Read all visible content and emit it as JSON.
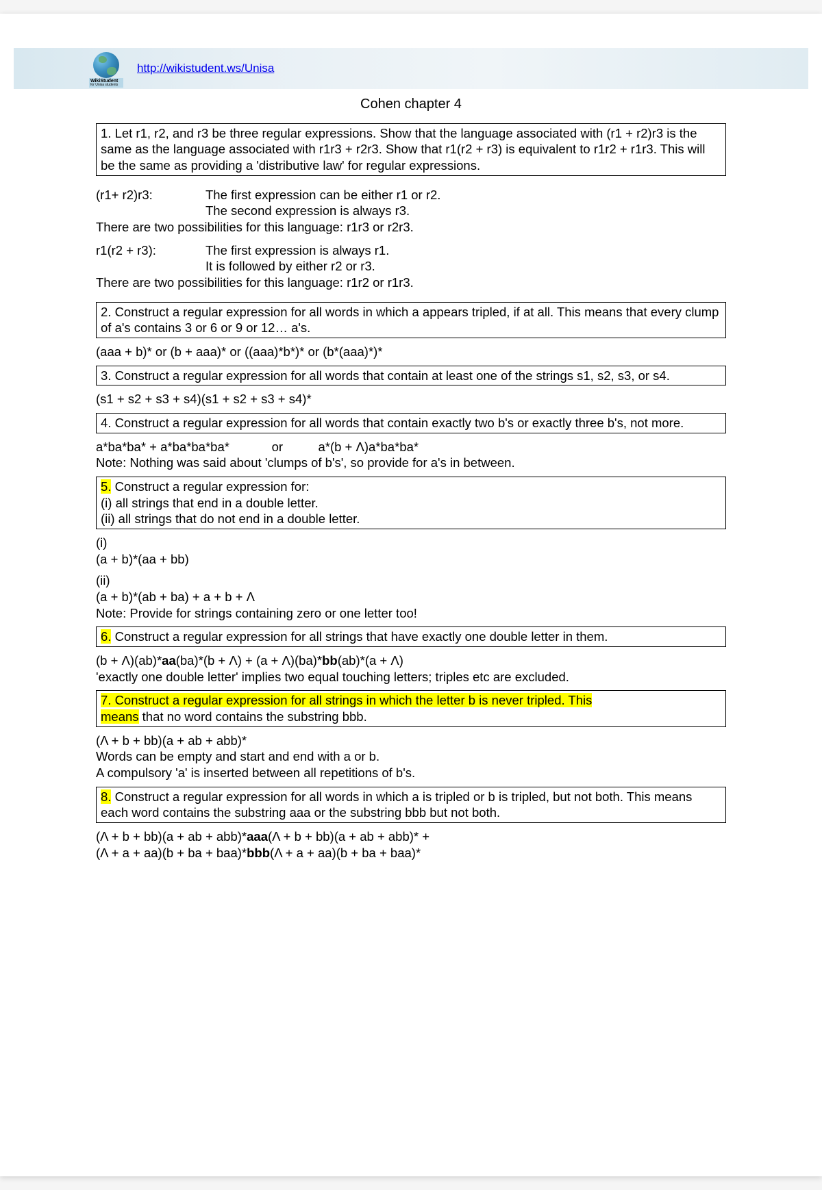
{
  "header": {
    "logo_name": "WikiStudent",
    "logo_sub": "for Unisa students",
    "link_text": "http://wikistudent.ws/Unisa"
  },
  "title": "Cohen chapter 4",
  "q1": {
    "box": "1. Let r1, r2, and r3 be three regular expressions. Show that the language associated with (r1 + r2)r3 is the same as the language associated with r1r3 + r2r3. Show that r1(r2 + r3) is equivalent to r1r2 + r1r3. This will be the same as providing a 'distributive law' for regular expressions.",
    "a_label": "(r1+ r2)r3:",
    "a_body1": "The first expression can be either r1 or r2.",
    "a_body2": "The second expression is always r3.",
    "a_line3": "There are two possibilities for this language: r1r3 or r2r3.",
    "b_label": "r1(r2 + r3):",
    "b_body1": "The first expression is always r1.",
    "b_body2": "It is followed by either r2 or r3.",
    "b_line3": "There are two possibilities for this language: r1r2 or r1r3."
  },
  "q2": {
    "box": "2. Construct a regular expression for all words in which a appears tripled, if at all. This means that every clump of a's contains 3 or 6 or 9 or 12… a's.",
    "ans": "(aaa + b)* or (b + aaa)* or ((aaa)*b*)* or (b*(aaa)*)*"
  },
  "q3": {
    "box": "3. Construct a regular expression for all words that contain at least one of the strings s1, s2, s3, or s4.",
    "ans": "(s1 + s2 + s3 + s4)(s1 + s2 + s3 + s4)*"
  },
  "q4": {
    "box": "4. Construct a regular expression for all words that contain exactly two b's or exactly three b's, not more.",
    "ans": "a*ba*ba* + a*ba*ba*ba*            or          a*(b + Λ)a*ba*ba*",
    "note": "Note: Nothing was said about 'clumps of b's', so provide for a's in between."
  },
  "q5": {
    "num": "5.",
    "rest": " Construct a regular expression for:",
    "line2": "(i) all strings that end in a double letter.",
    "line3": "(ii) all strings that do not end in a double letter.",
    "i_label": "(i)",
    "i_ans": "(a + b)*(aa + bb)",
    "ii_label": "(ii)",
    "ii_ans": "(a + b)*(ab + ba) + a + b + Λ",
    "ii_note": "Note: Provide for strings containing zero or one letter too!"
  },
  "q6": {
    "num": "6.",
    "rest": " Construct a regular expression for all strings that have exactly one double letter in them.",
    "ans_pre": "(b + Λ)(ab)*",
    "ans_b1": "aa",
    "ans_mid": "(ba)*(b + Λ) + (a + Λ)(ba)*",
    "ans_b2": "bb",
    "ans_post": "(ab)*(a + Λ)",
    "note": "'exactly one double letter' implies two equal touching letters; triples etc are excluded."
  },
  "q7": {
    "line1": "7. Construct a regular expression for all strings in which the letter b is never tripled. This",
    "line2a": "means",
    "line2b": " that no word contains the substring bbb.",
    "ans": "(Λ + b + bb)(a + ab + abb)*",
    "note1": "Words can be empty and start and end with a or b.",
    "note2": "A compulsory 'a' is inserted between all repetitions of b's."
  },
  "q8": {
    "num": "8.",
    "rest": " Construct a regular expression for all words in which a is tripled or b is tripled, but not both. This means each word contains the substring aaa or the substring bbb but not both.",
    "l1a": "(Λ + b + bb)(a + ab + abb)*",
    "l1b": "aaa",
    "l1c": "(Λ + b + bb)(a + ab + abb)* +",
    "l2a": "(Λ + a + aa)(b + ba + baa)*",
    "l2b": "bbb",
    "l2c": "(Λ + a + aa)(b + ba + baa)*"
  }
}
